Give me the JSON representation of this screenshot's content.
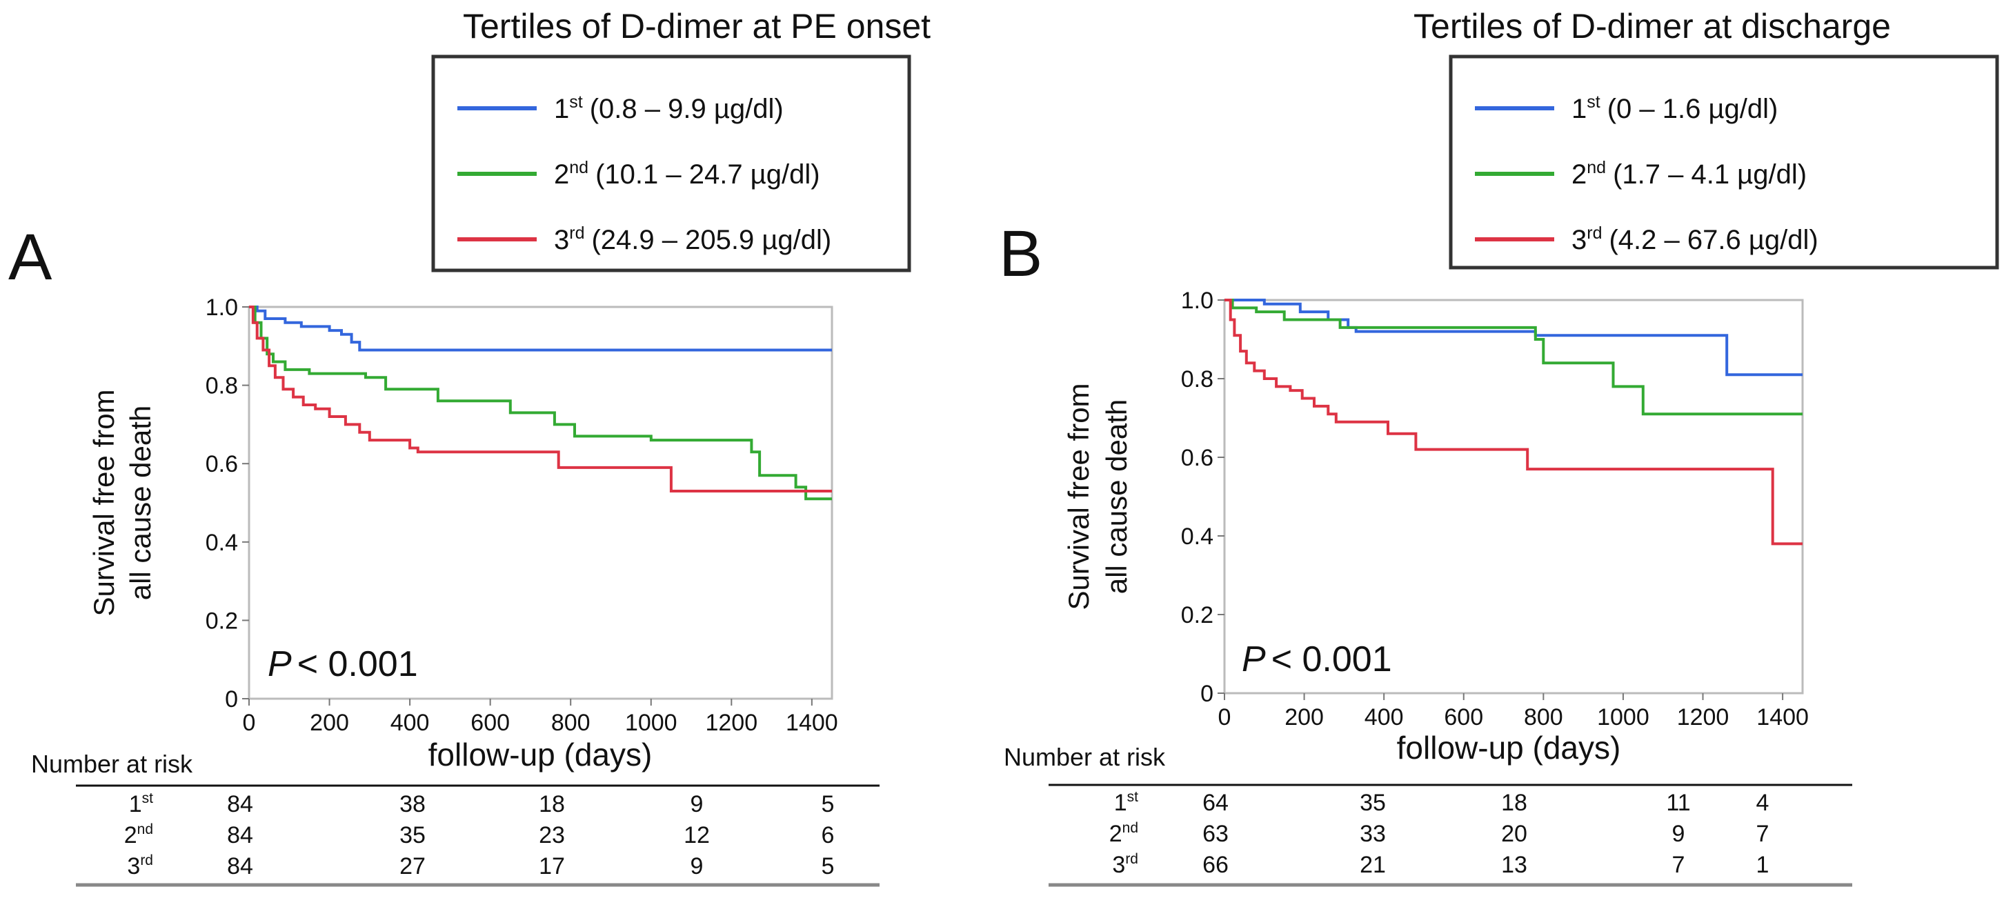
{
  "chart_data": [
    {
      "type": "line",
      "panel_label": "A",
      "title": "Tertiles of D-dimer at PE onset",
      "xlabel": "follow-up (days)",
      "ylabel_lines": [
        "Survival free from",
        "all cause death"
      ],
      "xlim": [
        0,
        1450
      ],
      "ylim": [
        0,
        1.0
      ],
      "x_ticks": [
        "0",
        "200",
        "400",
        "600",
        "800",
        "1000",
        "1200",
        "1400"
      ],
      "y_ticks": [
        "0",
        "0.2",
        "0.4",
        "0.6",
        "0.8",
        "1.0"
      ],
      "annotation": {
        "p_symbol": "P",
        "p_text": "< 0.001"
      },
      "legend": [
        {
          "ordinal": "1",
          "sup": "st",
          "range": "(0.8 – 9.9 µg/dl)",
          "color": "#3366dd"
        },
        {
          "ordinal": "2",
          "sup": "nd",
          "range": "(10.1 – 24.7 µg/dl)",
          "color": "#33aa33"
        },
        {
          "ordinal": "3",
          "sup": "rd",
          "range": "(24.9 – 205.9 µg/dl)",
          "color": "#dd3344"
        }
      ],
      "series": [
        {
          "name": "1st",
          "color": "#3366dd",
          "points": [
            [
              0,
              1.0
            ],
            [
              20,
              0.99
            ],
            [
              40,
              0.97
            ],
            [
              90,
              0.96
            ],
            [
              130,
              0.95
            ],
            [
              200,
              0.94
            ],
            [
              230,
              0.93
            ],
            [
              255,
              0.91
            ],
            [
              275,
              0.89
            ],
            [
              1450,
              0.89
            ]
          ]
        },
        {
          "name": "2nd",
          "color": "#33aa33",
          "points": [
            [
              0,
              1.0
            ],
            [
              15,
              0.96
            ],
            [
              30,
              0.92
            ],
            [
              45,
              0.88
            ],
            [
              60,
              0.86
            ],
            [
              90,
              0.84
            ],
            [
              150,
              0.83
            ],
            [
              210,
              0.83
            ],
            [
              290,
              0.82
            ],
            [
              340,
              0.79
            ],
            [
              470,
              0.76
            ],
            [
              650,
              0.73
            ],
            [
              760,
              0.7
            ],
            [
              810,
              0.67
            ],
            [
              1000,
              0.66
            ],
            [
              1250,
              0.63
            ],
            [
              1270,
              0.57
            ],
            [
              1360,
              0.54
            ],
            [
              1385,
              0.51
            ],
            [
              1450,
              0.51
            ]
          ]
        },
        {
          "name": "3rd",
          "color": "#dd3344",
          "points": [
            [
              0,
              1.0
            ],
            [
              10,
              0.96
            ],
            [
              20,
              0.92
            ],
            [
              35,
              0.89
            ],
            [
              50,
              0.85
            ],
            [
              65,
              0.82
            ],
            [
              85,
              0.79
            ],
            [
              110,
              0.77
            ],
            [
              135,
              0.75
            ],
            [
              165,
              0.74
            ],
            [
              200,
              0.72
            ],
            [
              240,
              0.7
            ],
            [
              275,
              0.68
            ],
            [
              300,
              0.66
            ],
            [
              400,
              0.64
            ],
            [
              420,
              0.63
            ],
            [
              770,
              0.59
            ],
            [
              1050,
              0.53
            ],
            [
              1450,
              0.53
            ]
          ]
        }
      ],
      "risk_table": {
        "header": "Number at risk",
        "rows": [
          {
            "ordinal": "1",
            "sup": "st",
            "values": [
              "84",
              "38",
              "18",
              "9",
              "5"
            ]
          },
          {
            "ordinal": "2",
            "sup": "nd",
            "values": [
              "84",
              "35",
              "23",
              "12",
              "6"
            ]
          },
          {
            "ordinal": "3",
            "sup": "rd",
            "values": [
              "84",
              "27",
              "17",
              "9",
              "5"
            ]
          }
        ]
      }
    },
    {
      "type": "line",
      "panel_label": "B",
      "title": "Tertiles of D-dimer at discharge",
      "xlabel": "follow-up (days)",
      "ylabel_lines": [
        "Survival free from",
        "all cause death"
      ],
      "xlim": [
        0,
        1450
      ],
      "ylim": [
        0,
        1.0
      ],
      "x_ticks": [
        "0",
        "200",
        "400",
        "600",
        "800",
        "1000",
        "1200",
        "1400"
      ],
      "y_ticks": [
        "0",
        "0.2",
        "0.4",
        "0.6",
        "0.8",
        "1.0"
      ],
      "annotation": {
        "p_symbol": "P",
        "p_text": "< 0.001"
      },
      "legend": [
        {
          "ordinal": "1",
          "sup": "st",
          "range": "(0 – 1.6 µg/dl)",
          "color": "#3366dd"
        },
        {
          "ordinal": "2",
          "sup": "nd",
          "range": "(1.7 – 4.1 µg/dl)",
          "color": "#33aa33"
        },
        {
          "ordinal": "3",
          "sup": "rd",
          "range": "(4.2 – 67.6 µg/dl)",
          "color": "#dd3344"
        }
      ],
      "series": [
        {
          "name": "1st",
          "color": "#3366dd",
          "points": [
            [
              0,
              1.0
            ],
            [
              100,
              0.99
            ],
            [
              190,
              0.97
            ],
            [
              260,
              0.95
            ],
            [
              310,
              0.93
            ],
            [
              330,
              0.92
            ],
            [
              780,
              0.91
            ],
            [
              1250,
              0.91
            ],
            [
              1260,
              0.81
            ],
            [
              1450,
              0.81
            ]
          ]
        },
        {
          "name": "2nd",
          "color": "#33aa33",
          "points": [
            [
              0,
              1.0
            ],
            [
              20,
              0.98
            ],
            [
              80,
              0.97
            ],
            [
              150,
              0.95
            ],
            [
              290,
              0.93
            ],
            [
              470,
              0.93
            ],
            [
              780,
              0.9
            ],
            [
              800,
              0.84
            ],
            [
              960,
              0.84
            ],
            [
              975,
              0.78
            ],
            [
              1050,
              0.71
            ],
            [
              1450,
              0.71
            ]
          ]
        },
        {
          "name": "3rd",
          "color": "#dd3344",
          "points": [
            [
              0,
              1.0
            ],
            [
              15,
              0.95
            ],
            [
              25,
              0.91
            ],
            [
              40,
              0.87
            ],
            [
              55,
              0.84
            ],
            [
              75,
              0.82
            ],
            [
              100,
              0.8
            ],
            [
              130,
              0.78
            ],
            [
              165,
              0.77
            ],
            [
              195,
              0.75
            ],
            [
              225,
              0.73
            ],
            [
              260,
              0.71
            ],
            [
              280,
              0.69
            ],
            [
              410,
              0.66
            ],
            [
              480,
              0.62
            ],
            [
              760,
              0.57
            ],
            [
              1360,
              0.57
            ],
            [
              1375,
              0.38
            ],
            [
              1450,
              0.38
            ]
          ]
        }
      ],
      "risk_table": {
        "header": "Number at risk",
        "rows": [
          {
            "ordinal": "1",
            "sup": "st",
            "values": [
              "64",
              "35",
              "18",
              "11",
              "4"
            ]
          },
          {
            "ordinal": "2",
            "sup": "nd",
            "values": [
              "63",
              "33",
              "20",
              "9",
              "7"
            ]
          },
          {
            "ordinal": "3",
            "sup": "rd",
            "values": [
              "66",
              "21",
              "13",
              "7",
              "1"
            ]
          }
        ]
      }
    }
  ]
}
